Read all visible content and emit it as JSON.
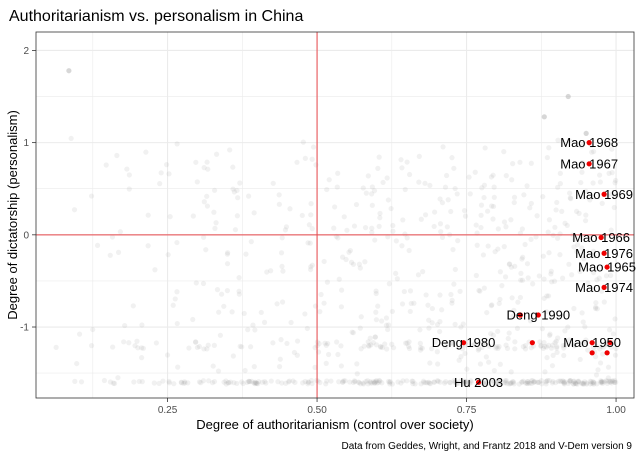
{
  "chart_data": {
    "type": "scatter",
    "title": "Authoritarianism vs. personalism in China",
    "xlabel": "Degree of authoritarianism (control over society)",
    "ylabel": "Degree of dictatorship (personalism)",
    "caption": "Data from Geddes, Wright, and Frantz 2018 and V-Dem version 9",
    "xlim": [
      0.03,
      1.03
    ],
    "ylim": [
      -1.77,
      2.2
    ],
    "x_ticks": [
      0.25,
      0.5,
      0.75,
      1.0
    ],
    "x_tick_labels": [
      "0.25",
      "0.50",
      "0.75",
      "1.00"
    ],
    "y_ticks": [
      -1,
      0,
      1,
      2
    ],
    "y_tick_labels": [
      "-1",
      "0",
      "1",
      "2"
    ],
    "reference_lines": {
      "x": 0.5,
      "y": 0,
      "color": "#e8474b"
    },
    "colors": {
      "highlight": "#ee0000",
      "background_points": "#9a9a9a",
      "grid": "#ebebeb"
    },
    "background_note": "Several hundred faint grey points for all other country-years, densest at high authoritarianism (0.85–1.0) and low personalism (≈ -1.6 to -1.2).",
    "highlighted_points": [
      {
        "label": "Mao 1968",
        "x": 0.955,
        "y": 1.0
      },
      {
        "label": "Mao 1967",
        "x": 0.955,
        "y": 0.77
      },
      {
        "label": "Mao 1969",
        "x": 0.98,
        "y": 0.44
      },
      {
        "label": "Mao 1966",
        "x": 0.975,
        "y": -0.03
      },
      {
        "label": "Mao 1976",
        "x": 0.98,
        "y": -0.2
      },
      {
        "label": "Mao 1965",
        "x": 0.985,
        "y": -0.35
      },
      {
        "label": "Mao 1974",
        "x": 0.98,
        "y": -0.57
      },
      {
        "label": "Deng 1990",
        "x": 0.87,
        "y": -0.87
      },
      {
        "label": "Deng 1980",
        "x": 0.745,
        "y": -1.17
      },
      {
        "label": "Mao 1950",
        "x": 0.96,
        "y": -1.17
      },
      {
        "label": "Hu 2003",
        "x": 0.77,
        "y": -1.6
      }
    ],
    "unlabeled_highlighted_points": [
      {
        "x": 0.84,
        "y": -0.87
      },
      {
        "x": 0.86,
        "y": -1.17
      },
      {
        "x": 0.96,
        "y": -1.28
      },
      {
        "x": 0.985,
        "y": -1.28
      },
      {
        "x": 0.99,
        "y": -1.17
      }
    ]
  }
}
